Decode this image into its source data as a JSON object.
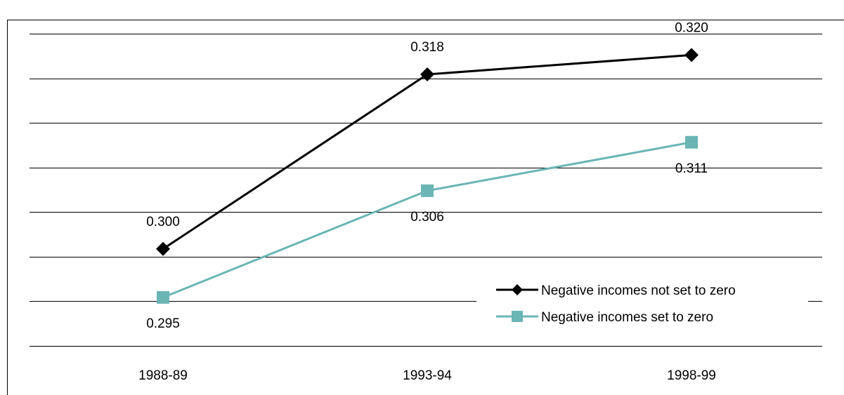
{
  "chart_data": {
    "type": "line",
    "categories": [
      "1988-89",
      "1993-94",
      "1998-99"
    ],
    "ylim": [
      0.29,
      0.3222
    ],
    "grid": true,
    "legend_position": "bottom-right",
    "series": [
      {
        "name": "Negative incomes not set to zero",
        "values": [
          0.3,
          0.318,
          0.32
        ],
        "labels": [
          "0.300",
          "0.318",
          "0.320"
        ],
        "color": "#000000",
        "marker": "diamond",
        "label_position": "above"
      },
      {
        "name": "Negative incomes set to zero",
        "values": [
          0.295,
          0.306,
          0.311
        ],
        "labels": [
          "0.295",
          "0.306",
          "0.311"
        ],
        "color": "#6BB5B5",
        "marker": "square",
        "label_position": "below"
      }
    ]
  }
}
